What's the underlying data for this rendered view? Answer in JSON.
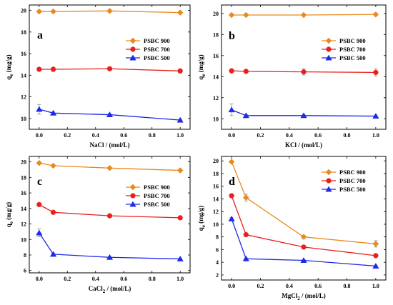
{
  "chart_data": [
    {
      "type": "line",
      "panel_letter": "a",
      "xlabel": "NaCl / (mol/L)",
      "ylabel_main": "q",
      "ylabel_sub": "e",
      "ylabel_unit": " (mg/g)",
      "xlim": [
        -0.07,
        1.07
      ],
      "ylim": [
        9,
        20.5
      ],
      "xticks": [
        "0.0",
        "0.2",
        "0.4",
        "0.6",
        "0.8",
        "1.0"
      ],
      "xtick_values": [
        0,
        0.2,
        0.4,
        0.6,
        0.8,
        1.0
      ],
      "yticks": [
        "10",
        "12",
        "14",
        "16",
        "18",
        "20"
      ],
      "ytick_values": [
        10,
        12,
        14,
        16,
        18,
        20
      ],
      "legend_position": "right",
      "x": [
        0,
        0.1,
        0.5,
        1.0
      ],
      "series": [
        {
          "name": "PSBC 900",
          "marker": "diamond",
          "color": "#E88A1E",
          "values": [
            19.9,
            19.9,
            19.95,
            19.8
          ],
          "errors": [
            0.1,
            0.1,
            0.1,
            0.1
          ]
        },
        {
          "name": "PSBC 700",
          "marker": "circle",
          "color": "#E8201E",
          "values": [
            14.55,
            14.55,
            14.6,
            14.4
          ],
          "errors": [
            0.15,
            0.2,
            0.15,
            0.15
          ]
        },
        {
          "name": "PSBC 500",
          "marker": "triangle",
          "color": "#1E2AE8",
          "values": [
            10.85,
            10.5,
            10.35,
            9.85
          ],
          "errors": [
            0.45,
            0.1,
            0.1,
            0.1
          ]
        }
      ]
    },
    {
      "type": "line",
      "panel_letter": "b",
      "xlabel": "KCl / (mol/L)",
      "ylabel_main": "q",
      "ylabel_sub": "e",
      "ylabel_unit": " (mg/g)",
      "xlim": [
        -0.07,
        1.07
      ],
      "ylim": [
        9,
        20.8
      ],
      "xticks": [
        "0.0",
        "0.2",
        "0.4",
        "0.6",
        "0.8",
        "1.0"
      ],
      "xtick_values": [
        0,
        0.2,
        0.4,
        0.6,
        0.8,
        1.0
      ],
      "yticks": [
        "10",
        "12",
        "14",
        "16",
        "18",
        "20"
      ],
      "ytick_values": [
        10,
        12,
        14,
        16,
        18,
        20
      ],
      "legend_position": "right",
      "x": [
        0,
        0.1,
        0.5,
        1.0
      ],
      "series": [
        {
          "name": "PSBC 900",
          "marker": "diamond",
          "color": "#E88A1E",
          "values": [
            19.85,
            19.85,
            19.85,
            19.9
          ],
          "errors": [
            0.1,
            0.1,
            0.1,
            0.1
          ]
        },
        {
          "name": "PSBC 700",
          "marker": "circle",
          "color": "#E8201E",
          "values": [
            14.55,
            14.5,
            14.45,
            14.4
          ],
          "errors": [
            0.15,
            0.15,
            0.3,
            0.35
          ]
        },
        {
          "name": "PSBC 500",
          "marker": "triangle",
          "color": "#1E2AE8",
          "values": [
            10.85,
            10.3,
            10.3,
            10.25
          ],
          "errors": [
            0.55,
            0.1,
            0.1,
            0.1
          ]
        }
      ]
    },
    {
      "type": "line",
      "panel_letter": "c",
      "xlabel": "CaCl",
      "xlabel_sub": "2",
      "xlabel_rest": " / (mol/L)",
      "ylabel_main": "q",
      "ylabel_sub": "e",
      "ylabel_unit": " (mg/g)",
      "xlim": [
        -0.07,
        1.07
      ],
      "ylim": [
        5.7,
        20.7
      ],
      "xticks": [
        "0.0",
        "0.2",
        "0.4",
        "0.6",
        "0.8",
        "1.0"
      ],
      "xtick_values": [
        0,
        0.2,
        0.4,
        0.6,
        0.8,
        1.0
      ],
      "yticks": [
        "6",
        "8",
        "10",
        "12",
        "14",
        "16",
        "18",
        "20"
      ],
      "ytick_values": [
        6,
        8,
        10,
        12,
        14,
        16,
        18,
        20
      ],
      "legend_position": "right",
      "x": [
        0,
        0.1,
        0.5,
        1.0
      ],
      "series": [
        {
          "name": "PSBC 900",
          "marker": "diamond",
          "color": "#E88A1E",
          "values": [
            19.85,
            19.5,
            19.2,
            18.9
          ],
          "errors": [
            0.1,
            0.1,
            0.1,
            0.1
          ]
        },
        {
          "name": "PSBC 700",
          "marker": "circle",
          "color": "#E8201E",
          "values": [
            14.5,
            13.5,
            13.05,
            12.8
          ],
          "errors": [
            0.15,
            0.15,
            0.15,
            0.15
          ]
        },
        {
          "name": "PSBC 500",
          "marker": "triangle",
          "color": "#1E2AE8",
          "values": [
            10.85,
            8.1,
            7.7,
            7.5
          ],
          "errors": [
            0.5,
            0.15,
            0.1,
            0.1
          ]
        }
      ]
    },
    {
      "type": "line",
      "panel_letter": "d",
      "xlabel": "MgCl",
      "xlabel_sub": "2",
      "xlabel_rest": " / (mol/L)",
      "ylabel_main": "q",
      "ylabel_sub": "e",
      "ylabel_unit": " (mg/g)",
      "xlim": [
        -0.07,
        1.07
      ],
      "ylim": [
        1.2,
        20.7
      ],
      "xticks": [
        "0.0",
        "0.2",
        "0.4",
        "0.6",
        "0.8",
        "1.0"
      ],
      "xtick_values": [
        0,
        0.2,
        0.4,
        0.6,
        0.8,
        1.0
      ],
      "yticks": [
        "2",
        "4",
        "6",
        "8",
        "10",
        "12",
        "14",
        "16",
        "18",
        "20"
      ],
      "ytick_values": [
        2,
        4,
        6,
        8,
        10,
        12,
        14,
        16,
        18,
        20
      ],
      "legend_position": "top-right",
      "x": [
        0,
        0.1,
        0.5,
        1.0
      ],
      "series": [
        {
          "name": "PSBC 900",
          "marker": "diamond",
          "color": "#E88A1E",
          "values": [
            19.85,
            14.2,
            8.0,
            6.9
          ],
          "errors": [
            0.1,
            0.55,
            0.25,
            0.5
          ]
        },
        {
          "name": "PSBC 700",
          "marker": "circle",
          "color": "#E8201E",
          "values": [
            14.5,
            8.35,
            6.4,
            5.05
          ],
          "errors": [
            0.15,
            0.15,
            0.15,
            0.2
          ]
        },
        {
          "name": "PSBC 500",
          "marker": "triangle",
          "color": "#1E2AE8",
          "values": [
            10.85,
            4.55,
            4.3,
            3.4
          ],
          "errors": [
            0.2,
            0.15,
            0.1,
            0.15
          ]
        }
      ]
    }
  ]
}
